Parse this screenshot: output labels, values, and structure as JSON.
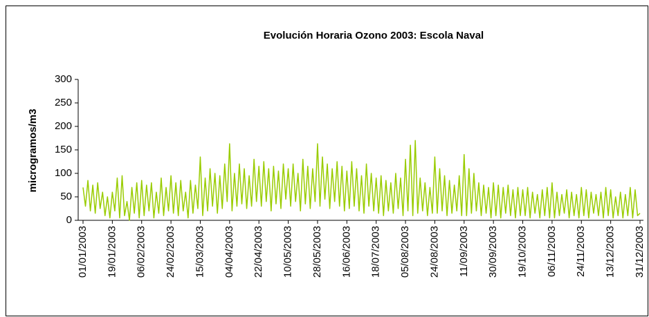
{
  "chart_data": {
    "type": "line",
    "title": "Evolución Horaria Ozono 2003: Escola Naval",
    "y_label": "microgramos/m3",
    "ylim": [
      0,
      300
    ],
    "yticks": [
      0,
      50,
      100,
      150,
      200,
      250,
      300
    ],
    "xlim": [
      0,
      228
    ],
    "xticks": [
      {
        "value": 0,
        "label": "01/01/2003"
      },
      {
        "value": 12,
        "label": "19/01/2003"
      },
      {
        "value": 24,
        "label": "06/02/2003"
      },
      {
        "value": 36,
        "label": "24/02/2003"
      },
      {
        "value": 48,
        "label": "15/03/2003"
      },
      {
        "value": 60,
        "label": "04/04/2003"
      },
      {
        "value": 72,
        "label": "22/04/2003"
      },
      {
        "value": 84,
        "label": "10/05/2003"
      },
      {
        "value": 96,
        "label": "28/05/2003"
      },
      {
        "value": 108,
        "label": "16/06/2003"
      },
      {
        "value": 120,
        "label": "18/07/2003"
      },
      {
        "value": 132,
        "label": "05/08/2003"
      },
      {
        "value": 144,
        "label": "24/08/2003"
      },
      {
        "value": 156,
        "label": "11/09/2003"
      },
      {
        "value": 168,
        "label": "30/09/2003"
      },
      {
        "value": 180,
        "label": "19/10/2003"
      },
      {
        "value": 192,
        "label": "06/11/2003"
      },
      {
        "value": 204,
        "label": "24/11/2003"
      },
      {
        "value": 216,
        "label": "13/12/2003"
      },
      {
        "value": 228,
        "label": "31/12/2003"
      }
    ],
    "color": "#99cc00",
    "values": [
      70,
      30,
      85,
      20,
      75,
      15,
      80,
      25,
      60,
      10,
      50,
      5,
      60,
      20,
      90,
      5,
      95,
      10,
      40,
      0,
      70,
      15,
      80,
      5,
      85,
      10,
      75,
      20,
      80,
      5,
      60,
      15,
      90,
      10,
      70,
      20,
      95,
      15,
      80,
      10,
      85,
      20,
      60,
      5,
      85,
      15,
      75,
      25,
      135,
      10,
      90,
      20,
      110,
      30,
      100,
      15,
      95,
      25,
      120,
      40,
      163,
      20,
      100,
      30,
      120,
      35,
      110,
      25,
      95,
      30,
      130,
      40,
      115,
      30,
      125,
      40,
      110,
      20,
      115,
      35,
      105,
      25,
      120,
      45,
      110,
      30,
      120,
      40,
      100,
      20,
      130,
      35,
      115,
      25,
      110,
      40,
      163,
      30,
      135,
      45,
      120,
      25,
      110,
      40,
      125,
      30,
      115,
      20,
      105,
      25,
      125,
      30,
      110,
      20,
      95,
      15,
      120,
      30,
      100,
      20,
      90,
      15,
      95,
      10,
      85,
      20,
      80,
      15,
      100,
      25,
      90,
      10,
      130,
      20,
      160,
      10,
      170,
      15,
      90,
      20,
      80,
      10,
      70,
      15,
      135,
      15,
      110,
      20,
      95,
      10,
      85,
      15,
      75,
      20,
      95,
      10,
      140,
      10,
      110,
      15,
      100,
      20,
      80,
      10,
      75,
      15,
      70,
      5,
      80,
      10,
      75,
      5,
      70,
      15,
      75,
      10,
      65,
      5,
      70,
      10,
      65,
      10,
      70,
      5,
      60,
      15,
      55,
      5,
      65,
      10,
      70,
      5,
      80,
      5,
      60,
      10,
      55,
      15,
      65,
      5,
      60,
      10,
      55,
      5,
      70,
      10,
      65,
      5,
      60,
      15,
      55,
      10,
      60,
      5,
      70,
      10,
      65,
      5,
      50,
      10,
      60,
      5,
      55,
      10,
      70,
      5,
      65,
      10,
      15
    ]
  }
}
